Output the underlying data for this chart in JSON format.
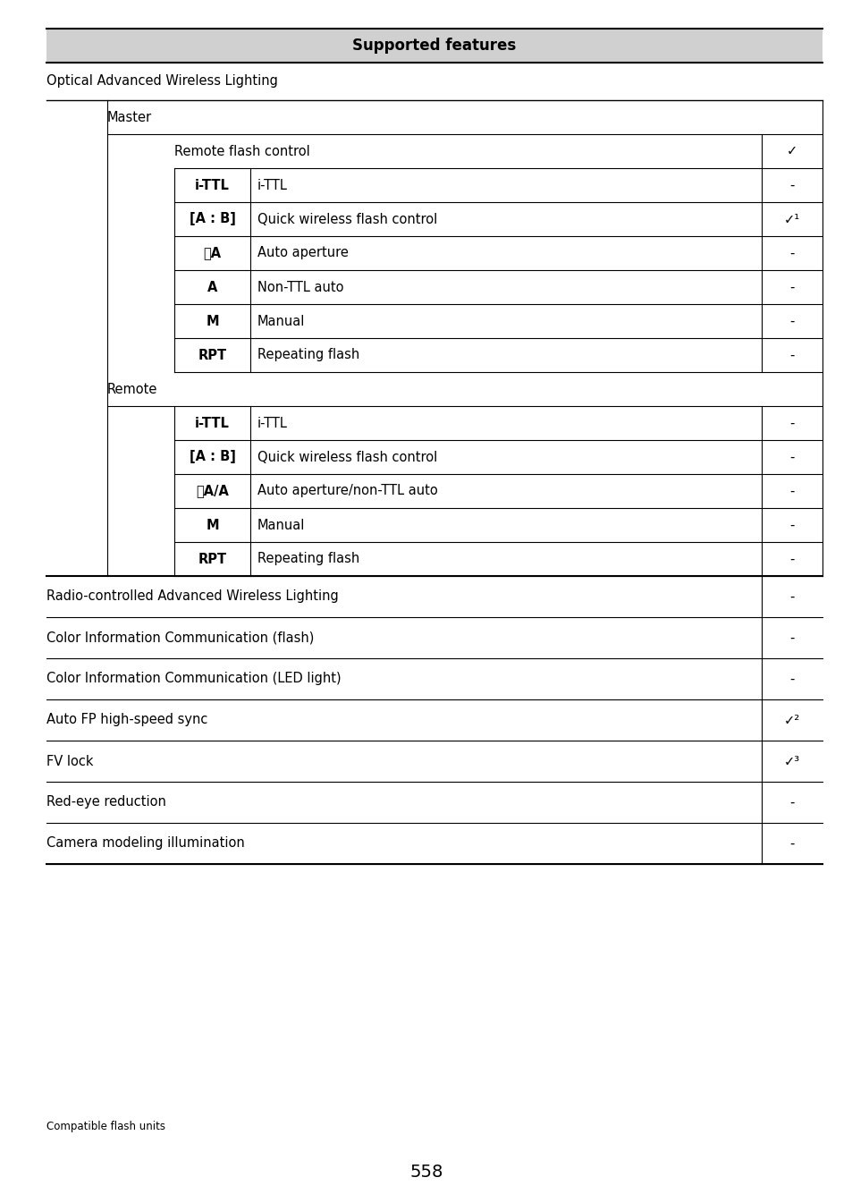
{
  "page_bg": "#ffffff",
  "header_bg": "#d0d0d0",
  "header_text": "Supported features",
  "header_fontsize": 12,
  "body_fontsize": 10.5,
  "small_fontsize": 8.5,
  "page_number": "558",
  "footer_note": "Compatible flash units",
  "master_rows": [
    {
      "label": "Remote flash control",
      "desc": "",
      "value": "✓",
      "bold": false,
      "span": true
    },
    {
      "label": "i-TTL",
      "desc": "i-TTL",
      "value": "-",
      "bold": true,
      "span": false
    },
    {
      "label": "[A : B]",
      "desc": "Quick wireless flash control",
      "value": "✓¹",
      "bold": true,
      "span": false
    },
    {
      "label": "ⓈA",
      "desc": "Auto aperture",
      "value": "-",
      "bold": true,
      "span": false
    },
    {
      "label": "A",
      "desc": "Non-TTL auto",
      "value": "-",
      "bold": true,
      "span": false
    },
    {
      "label": "M",
      "desc": "Manual",
      "value": "-",
      "bold": true,
      "span": false
    },
    {
      "label": "RPT",
      "desc": "Repeating flash",
      "value": "-",
      "bold": true,
      "span": false
    }
  ],
  "remote_rows": [
    {
      "label": "i-TTL",
      "desc": "i-TTL",
      "value": "-",
      "bold": true,
      "span": false
    },
    {
      "label": "[A : B]",
      "desc": "Quick wireless flash control",
      "value": "-",
      "bold": true,
      "span": false
    },
    {
      "label": "ⓈA/A",
      "desc": "Auto aperture/non-TTL auto",
      "value": "-",
      "bold": true,
      "span": false
    },
    {
      "label": "M",
      "desc": "Manual",
      "value": "-",
      "bold": true,
      "span": false
    },
    {
      "label": "RPT",
      "desc": "Repeating flash",
      "value": "-",
      "bold": true,
      "span": false
    }
  ],
  "flat_rows": [
    {
      "text": "Radio-controlled Advanced Wireless Lighting",
      "value": "-"
    },
    {
      "text": "Color Information Communication (flash)",
      "value": "-"
    },
    {
      "text": "Color Information Communication (LED light)",
      "value": "-"
    },
    {
      "text": "Auto FP high-speed sync",
      "value": "✓²"
    },
    {
      "text": "FV lock",
      "value": "✓³"
    },
    {
      "text": "Red-eye reduction",
      "value": "-"
    },
    {
      "text": "Camera modeling illumination",
      "value": "-"
    }
  ]
}
